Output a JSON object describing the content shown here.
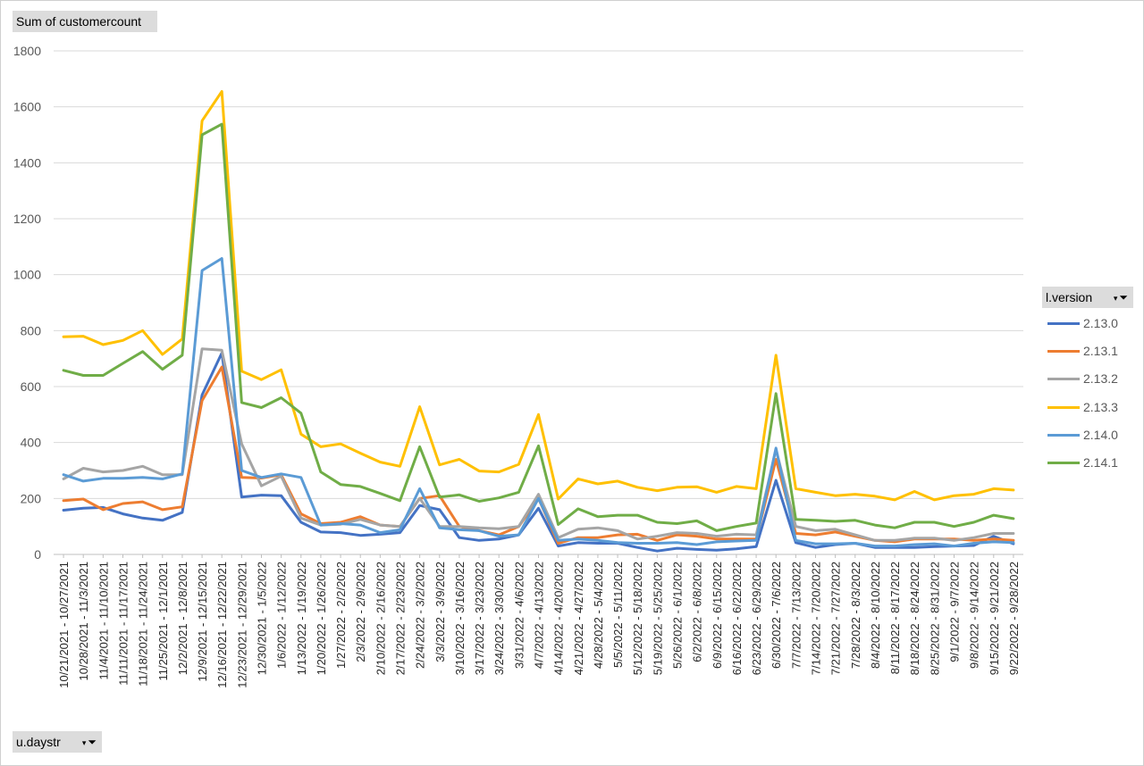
{
  "pivot": {
    "values_field": "Sum of customercount",
    "axis_field": "u.daystr",
    "legend_field": "l.version",
    "filter_icon": "filter-funnel-icon",
    "dropdown_icon": "dropdown-arrow-icon"
  },
  "chart_data": {
    "type": "line",
    "title": "",
    "xlabel": "",
    "ylabel": "",
    "ylim": [
      0,
      1800
    ],
    "yticks": [
      0,
      200,
      400,
      600,
      800,
      1000,
      1200,
      1400,
      1600,
      1800
    ],
    "grid": true,
    "legend_position": "right",
    "categories": [
      "10/21/2021 - 10/27/2021",
      "10/28/2021 - 11/3/2021",
      "11/4/2021 - 11/10/2021",
      "11/11/2021 - 11/17/2021",
      "11/18/2021 - 11/24/2021",
      "11/25/2021 - 12/1/2021",
      "12/2/2021 - 12/8/2021",
      "12/9/2021 - 12/15/2021",
      "12/16/2021 - 12/22/2021",
      "12/23/2021 - 12/29/2021",
      "12/30/2021 - 1/5/2022",
      "1/6/2022 - 1/12/2022",
      "1/13/2022 - 1/19/2022",
      "1/20/2022 - 1/26/2022",
      "1/27/2022 - 2/2/2022",
      "2/3/2022 - 2/9/2022",
      "2/10/2022 - 2/16/2022",
      "2/17/2022 - 2/23/2022",
      "2/24/2022 - 3/2/2022",
      "3/3/2022 - 3/9/2022",
      "3/10/2022 - 3/16/2022",
      "3/17/2022 - 3/23/2022",
      "3/24/2022 - 3/30/2022",
      "3/31/2022 - 4/6/2022",
      "4/7/2022 - 4/13/2022",
      "4/14/2022 - 4/20/2022",
      "4/21/2022 - 4/27/2022",
      "4/28/2022 - 5/4/2022",
      "5/5/2022 - 5/11/2022",
      "5/12/2022 - 5/18/2022",
      "5/19/2022 - 5/25/2022",
      "5/26/2022 - 6/1/2022",
      "6/2/2022 - 6/8/2022",
      "6/9/2022 - 6/15/2022",
      "6/16/2022 - 6/22/2022",
      "6/23/2022 - 6/29/2022",
      "6/30/2022 - 7/6/2022",
      "7/7/2022 - 7/13/2022",
      "7/14/2022 - 7/20/2022",
      "7/21/2022 - 7/27/2022",
      "7/28/2022 - 8/3/2022",
      "8/4/2022 - 8/10/2022",
      "8/11/2022 - 8/17/2022",
      "8/18/2022 - 8/24/2022",
      "8/25/2022 - 8/31/2022",
      "9/1/2022 - 9/7/2022",
      "9/8/2022 - 9/14/2022",
      "9/15/2022 - 9/21/2022",
      "9/22/2022 - 9/28/2022"
    ],
    "series": [
      {
        "name": "2.13.0",
        "color": "#4472c4",
        "values": [
          158,
          165,
          168,
          145,
          130,
          122,
          150,
          570,
          720,
          205,
          212,
          210,
          115,
          80,
          78,
          68,
          72,
          78,
          175,
          160,
          60,
          50,
          55,
          70,
          165,
          30,
          42,
          40,
          40,
          25,
          12,
          22,
          18,
          15,
          20,
          28,
          265,
          42,
          25,
          35,
          40,
          25,
          25,
          25,
          28,
          30,
          32,
          65,
          38
        ]
      },
      {
        "name": "2.13.1",
        "color": "#ed7d31",
        "values": [
          192,
          198,
          160,
          182,
          188,
          160,
          170,
          550,
          670,
          275,
          273,
          285,
          145,
          110,
          115,
          135,
          105,
          100,
          200,
          210,
          100,
          85,
          70,
          100,
          200,
          40,
          60,
          60,
          70,
          72,
          50,
          70,
          65,
          55,
          55,
          55,
          340,
          75,
          70,
          80,
          65,
          50,
          45,
          55,
          55,
          55,
          50,
          55,
          50
        ]
      },
      {
        "name": "2.13.2",
        "color": "#a5a5a5",
        "values": [
          270,
          308,
          295,
          300,
          315,
          285,
          285,
          735,
          730,
          395,
          245,
          280,
          130,
          105,
          108,
          125,
          105,
          100,
          200,
          100,
          100,
          95,
          92,
          100,
          215,
          60,
          90,
          95,
          85,
          55,
          65,
          78,
          75,
          65,
          72,
          70,
          375,
          100,
          85,
          90,
          70,
          50,
          50,
          58,
          58,
          50,
          60,
          75,
          75
        ]
      },
      {
        "name": "2.13.3",
        "color": "#ffc000",
        "values": [
          778,
          780,
          750,
          765,
          800,
          715,
          770,
          1550,
          1655,
          655,
          625,
          660,
          430,
          385,
          395,
          362,
          330,
          315,
          528,
          320,
          340,
          298,
          295,
          322,
          500,
          198,
          270,
          252,
          262,
          240,
          228,
          240,
          242,
          222,
          243,
          235,
          712,
          235,
          222,
          210,
          215,
          208,
          195,
          225,
          195,
          210,
          215,
          235,
          230
        ]
      },
      {
        "name": "2.14.0",
        "color": "#5b9bd5",
        "values": [
          285,
          262,
          272,
          272,
          275,
          270,
          288,
          1015,
          1058,
          300,
          275,
          288,
          275,
          105,
          110,
          105,
          78,
          88,
          235,
          95,
          88,
          85,
          65,
          70,
          200,
          50,
          55,
          50,
          42,
          40,
          40,
          42,
          35,
          45,
          48,
          50,
          380,
          50,
          38,
          38,
          40,
          30,
          30,
          35,
          38,
          30,
          40,
          45,
          42
        ]
      },
      {
        "name": "2.14.1",
        "color": "#70ad47",
        "values": [
          658,
          640,
          640,
          683,
          725,
          662,
          712,
          1500,
          1538,
          543,
          525,
          560,
          505,
          295,
          250,
          243,
          218,
          192,
          385,
          205,
          213,
          190,
          202,
          222,
          388,
          107,
          163,
          135,
          140,
          140,
          115,
          110,
          120,
          85,
          100,
          112,
          575,
          125,
          122,
          118,
          122,
          105,
          95,
          115,
          115,
          100,
          115,
          140,
          128
        ]
      }
    ]
  }
}
